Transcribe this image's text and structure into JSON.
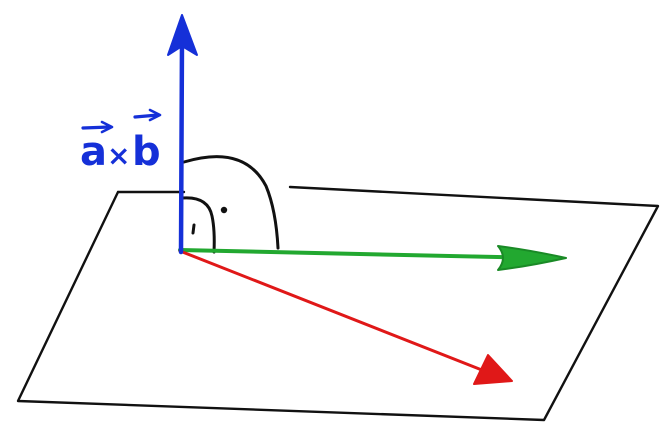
{
  "diagram": {
    "label_a": "a",
    "label_times": "×",
    "label_b": "b",
    "colors": {
      "cross_product_vector": "#1530d8",
      "vector_a": "#e01818",
      "vector_b": "#22a830",
      "plane_outline": "#111111",
      "angle_arcs": "#111111",
      "background": "#ffffff"
    }
  }
}
